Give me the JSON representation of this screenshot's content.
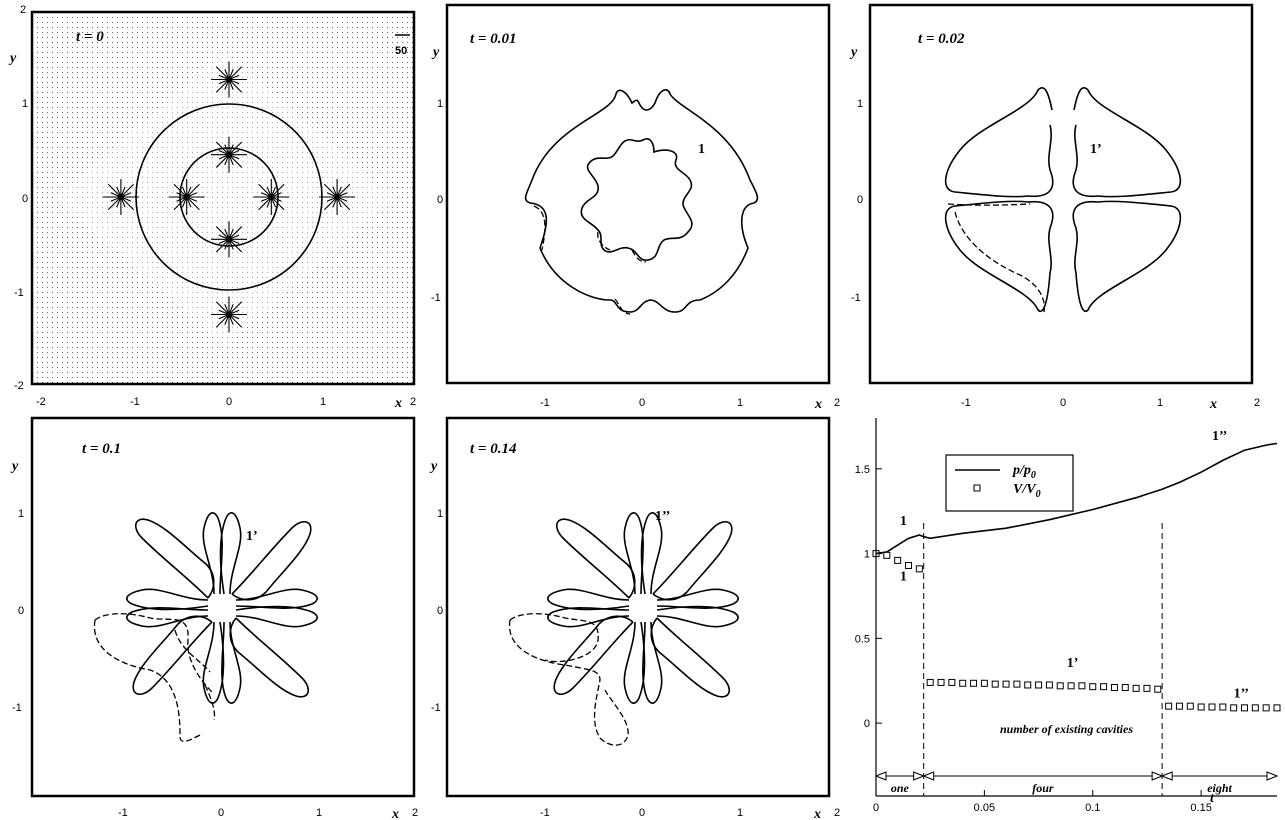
{
  "chart_data": [
    {
      "type": "contour",
      "title": "t = 0",
      "xlabel": "x",
      "ylabel": "y",
      "xlim": [
        -2,
        2
      ],
      "ylim": [
        -2,
        2
      ],
      "xticks": [
        "-2",
        "-1",
        "0",
        "1",
        "2"
      ],
      "yticks": [
        "-2",
        "-1",
        "0",
        "1",
        "2"
      ],
      "velocity_scale_label": "50",
      "shapes": [
        {
          "kind": "circle",
          "cx": 0,
          "cy": 0,
          "r": 0.95
        },
        {
          "kind": "circle",
          "cx": 0,
          "cy": 0,
          "r": 0.5
        }
      ],
      "vector_clusters": [
        [
          0,
          1.25
        ],
        [
          0,
          -1.25
        ],
        [
          -1.15,
          0
        ],
        [
          1.15,
          0
        ],
        [
          0,
          0.45
        ],
        [
          0,
          -0.45
        ],
        [
          -0.45,
          0
        ],
        [
          0.45,
          0
        ]
      ]
    },
    {
      "type": "contour",
      "title": "t = 0.01",
      "xlabel": "x",
      "ylabel": "y",
      "xlim": [
        -2,
        2
      ],
      "ylim": [
        -2,
        2
      ],
      "xticks": [
        "-1",
        "0",
        "1",
        "2"
      ],
      "yticks": [
        "-1",
        "0",
        "1"
      ],
      "annotations": [
        {
          "text": "1",
          "x": 0.6,
          "y": 0.5
        }
      ]
    },
    {
      "type": "contour",
      "title": "t = 0.02",
      "xlabel": "x",
      "ylabel": "y",
      "xlim": [
        -2,
        2
      ],
      "ylim": [
        -2,
        2
      ],
      "xticks": [
        "-1",
        "0",
        "1",
        "2"
      ],
      "yticks": [
        "-1",
        "0",
        "1"
      ],
      "annotations": [
        {
          "text": "1’",
          "x": 0.55,
          "y": 0.5
        }
      ]
    },
    {
      "type": "contour",
      "title": "t = 0.1",
      "xlabel": "x",
      "ylabel": "y",
      "xlim": [
        -2,
        2
      ],
      "ylim": [
        -2,
        2
      ],
      "xticks": [
        "-1",
        "0",
        "1",
        "2"
      ],
      "yticks": [
        "-1",
        "0",
        "1"
      ],
      "annotations": [
        {
          "text": "1’",
          "x": 0.25,
          "y": 0.75
        }
      ]
    },
    {
      "type": "contour",
      "title": "t = 0.14",
      "xlabel": "x",
      "ylabel": "y",
      "xlim": [
        -2,
        2
      ],
      "ylim": [
        -2,
        2
      ],
      "xticks": [
        "-1",
        "0",
        "1",
        "2"
      ],
      "yticks": [
        "-1",
        "0",
        "1"
      ],
      "annotations": [
        {
          "text": "1’’",
          "x": 0.15,
          "y": 0.95
        }
      ]
    },
    {
      "type": "line",
      "xlabel": "t",
      "ylabel": "",
      "xlim": [
        0,
        0.185
      ],
      "ylim": [
        -0.43,
        1.8
      ],
      "xticks": [
        "0",
        "0.05",
        "0.1",
        "0.15"
      ],
      "yticks": [
        "0",
        "0.5",
        "1",
        "1.5"
      ],
      "legend_position": "top-left",
      "series": [
        {
          "name": "p/p0",
          "legend_main": "p/p",
          "legend_sub": "0",
          "style": "solid",
          "x": [
            0,
            0.005,
            0.01,
            0.015,
            0.02,
            0.022,
            0.025,
            0.04,
            0.06,
            0.08,
            0.1,
            0.12,
            0.132,
            0.14,
            0.15,
            0.16,
            0.17,
            0.18,
            0.185
          ],
          "y": [
            1.0,
            1.01,
            1.05,
            1.09,
            1.11,
            1.1,
            1.09,
            1.12,
            1.15,
            1.2,
            1.26,
            1.33,
            1.38,
            1.42,
            1.48,
            1.55,
            1.61,
            1.64,
            1.65
          ]
        },
        {
          "name": "V/V0",
          "legend_main": "V/V",
          "legend_sub": "0",
          "style": "markers",
          "x": [
            0.0,
            0.005,
            0.01,
            0.015,
            0.02,
            0.025,
            0.03,
            0.035,
            0.04,
            0.045,
            0.05,
            0.055,
            0.06,
            0.065,
            0.07,
            0.075,
            0.08,
            0.085,
            0.09,
            0.095,
            0.1,
            0.105,
            0.11,
            0.115,
            0.12,
            0.125,
            0.13,
            0.135,
            0.14,
            0.145,
            0.15,
            0.155,
            0.16,
            0.165,
            0.17,
            0.175,
            0.18,
            0.185
          ],
          "y": [
            1.0,
            0.99,
            0.96,
            0.93,
            0.91,
            0.24,
            0.24,
            0.24,
            0.235,
            0.235,
            0.235,
            0.23,
            0.23,
            0.23,
            0.225,
            0.225,
            0.225,
            0.22,
            0.22,
            0.22,
            0.215,
            0.215,
            0.21,
            0.21,
            0.205,
            0.205,
            0.2,
            0.1,
            0.1,
            0.1,
            0.095,
            0.095,
            0.095,
            0.09,
            0.09,
            0.09,
            0.09,
            0.09
          ]
        }
      ],
      "vlines": [
        0.022,
        0.132
      ],
      "annotations": [
        {
          "text": "1",
          "x": 0.011,
          "y": 1.17
        },
        {
          "text": "1",
          "x": 0.011,
          "y": 0.84
        },
        {
          "text": "1’",
          "x": 0.075,
          "y": 1.34
        },
        {
          "text": "1’’",
          "x": 0.155,
          "y": 1.67
        },
        {
          "text": "1’",
          "x": 0.088,
          "y": 0.33
        },
        {
          "text": "1’’",
          "x": 0.165,
          "y": 0.15
        }
      ],
      "cavities_label": "number of existing cavities",
      "cavity_ranges": [
        {
          "label": "one",
          "x": [
            0,
            0.022
          ]
        },
        {
          "label": "four",
          "x": [
            0.022,
            0.132
          ]
        },
        {
          "label": "eight",
          "x": [
            0.132,
            0.185
          ]
        }
      ]
    }
  ]
}
